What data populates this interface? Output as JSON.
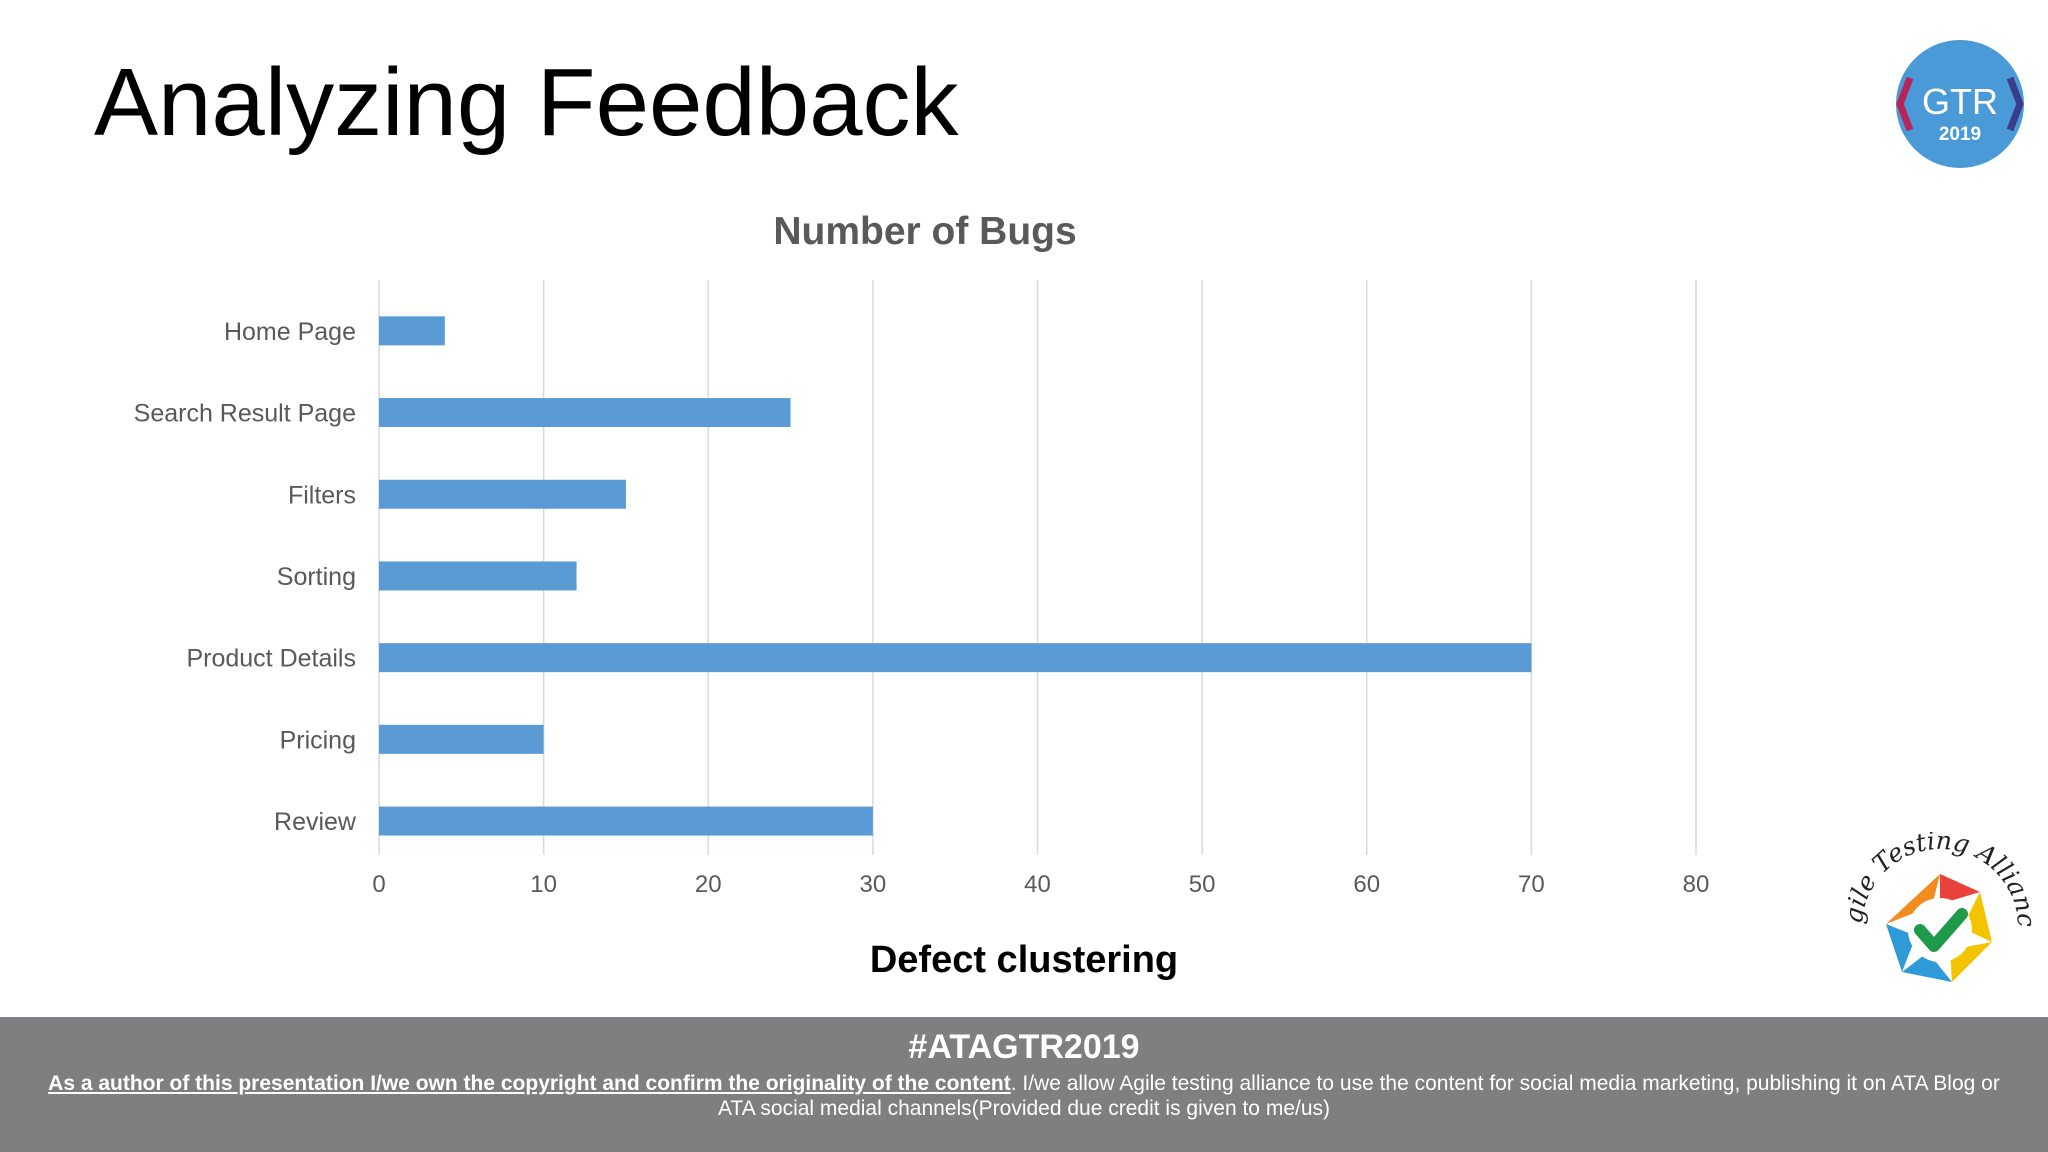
{
  "slide": {
    "title": "Analyzing Feedback",
    "caption": "Defect clustering"
  },
  "logos": {
    "gtr_text": "GTR",
    "gtr_year": "2019",
    "ata_text": "Agile Testing Alliance"
  },
  "footer": {
    "hashtag": "#ATAGTR2019",
    "notice_bold": "As a author of this presentation I/we own the copyright and confirm the originality of the content",
    "notice_rest": ". I/we allow Agile testing alliance to use the content for social media marketing, publishing it on ATA Blog or ATA social medial channels(Provided due credit is given to me/us)"
  },
  "colors": {
    "bar": "#5b9bd5",
    "grid": "#d9d9d9",
    "axis_text": "#595959",
    "footer_bg": "#7f7e80"
  },
  "chart_data": {
    "type": "bar",
    "orientation": "horizontal",
    "title": "Number of Bugs",
    "categories": [
      "Home Page",
      "Search Result Page",
      "Filters",
      "Sorting",
      "Product Details",
      "Pricing",
      "Review"
    ],
    "values": [
      4,
      25,
      15,
      12,
      70,
      10,
      30
    ],
    "xlim": [
      0,
      80
    ],
    "xticks": [
      0,
      10,
      20,
      30,
      40,
      50,
      60,
      70,
      80
    ],
    "grid": true,
    "legend": "none"
  }
}
